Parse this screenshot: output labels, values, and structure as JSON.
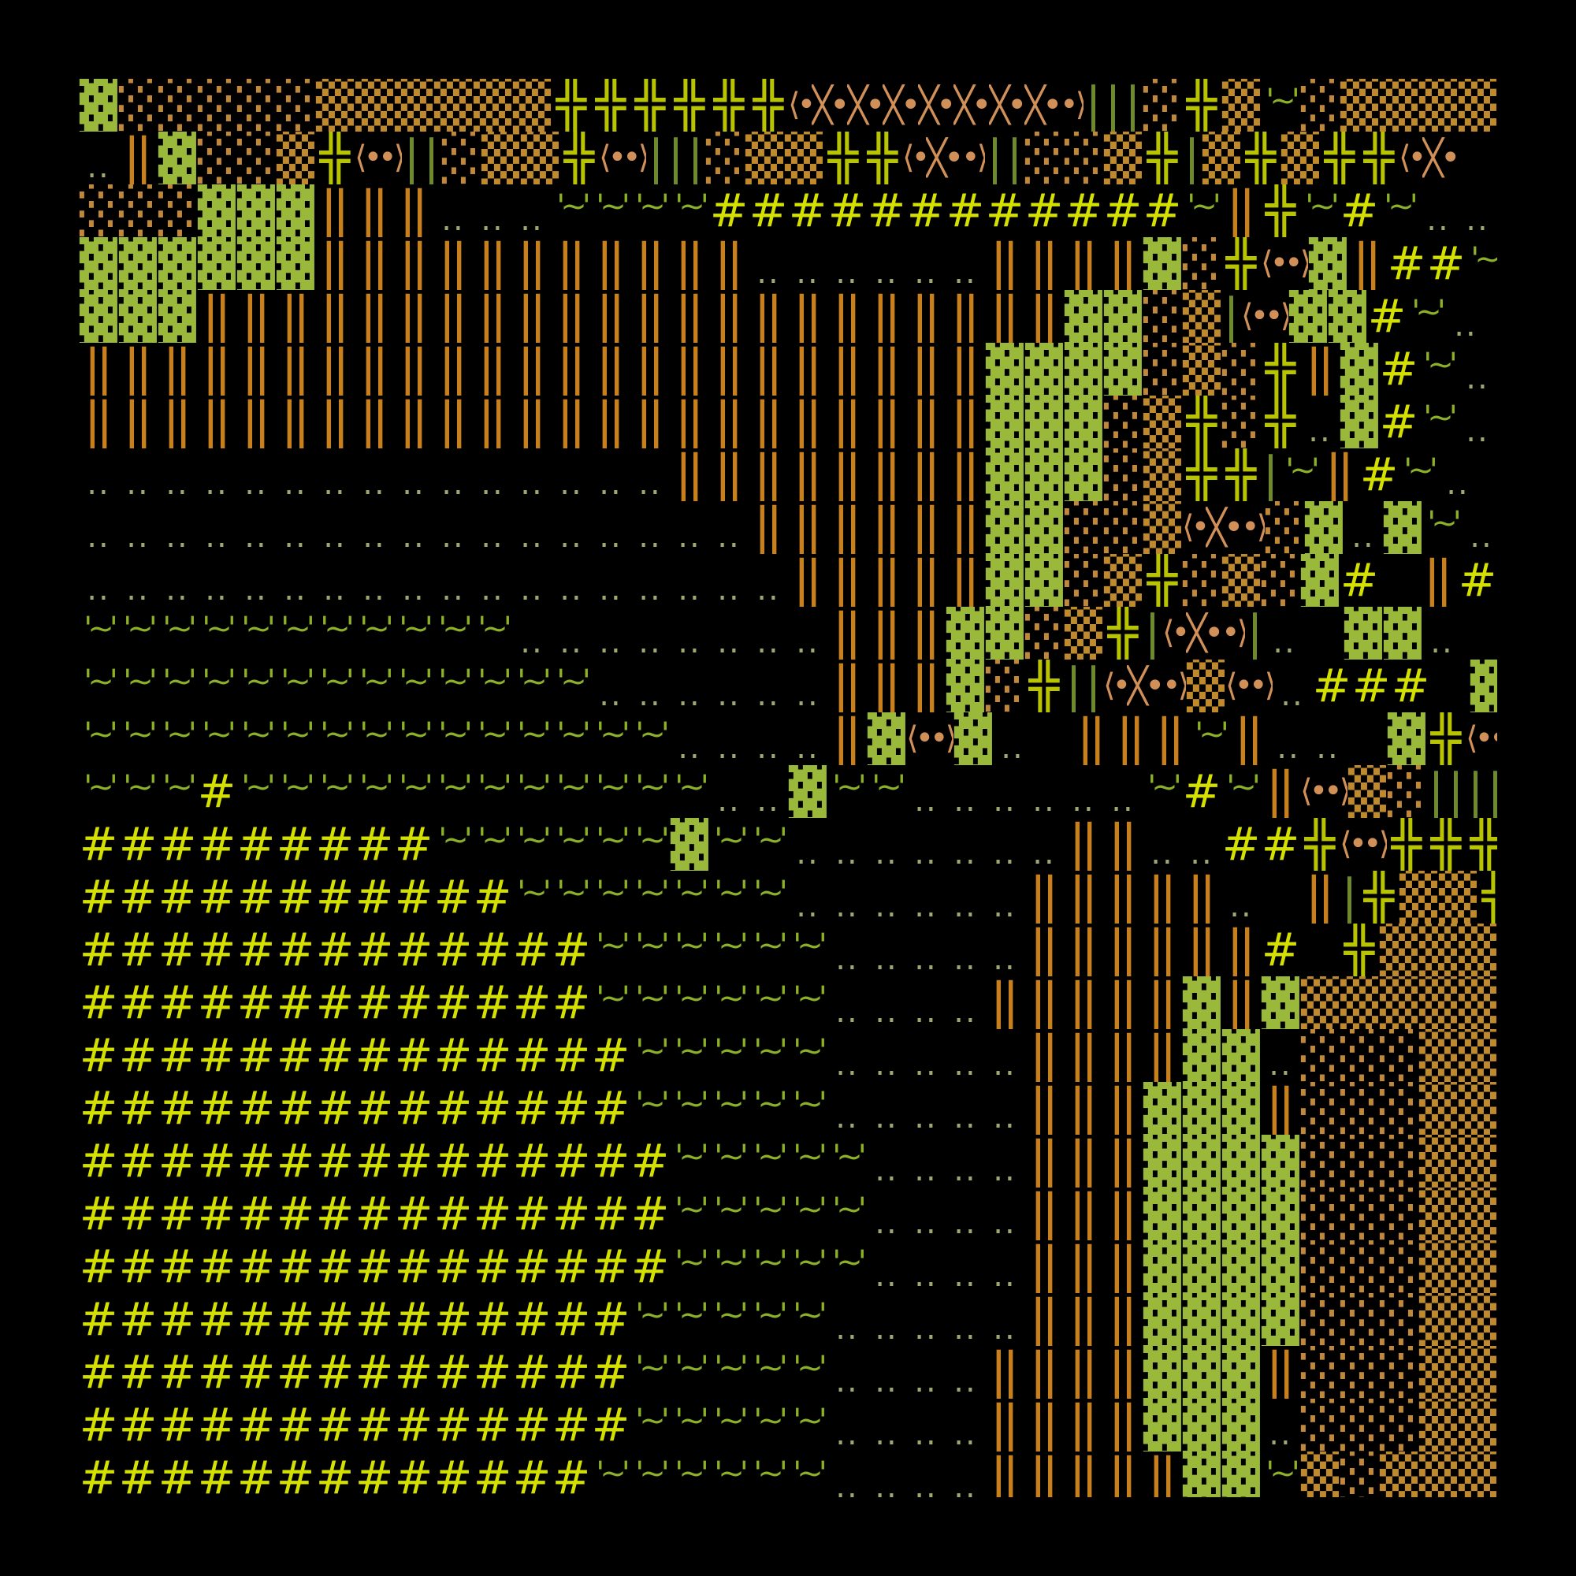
{
  "glyphs": {
    "G": {
      "char": "▓",
      "name": "dark-shade-block",
      "color": "#9ab83a"
    },
    "L": {
      "char": "░",
      "name": "light-shade-block",
      "color": "#c08838"
    },
    "M": {
      "char": "▒",
      "name": "medium-shade-block",
      "color": "#c08a2c"
    },
    "P": {
      "char": "╬",
      "name": "double-cross",
      "color": "#b8c400"
    },
    "O": {
      "char": "‖",
      "name": "double-bar",
      "color": "#c8801c"
    },
    "H": {
      "char": "#",
      "name": "hash",
      "color": "#d4e000"
    },
    "T": {
      "char": "'~'",
      "name": "tilde-quote",
      "color": "#8cb028"
    },
    "D": {
      "char": "..",
      "name": "dots",
      "color": "#a0a870"
    },
    "A": {
      "char": "⟨•",
      "name": "left-angle-dot",
      "color": "#d09058"
    },
    "X": {
      "char": "╳•",
      "name": "cross-dot",
      "color": "#d09058"
    },
    "B": {
      "char": "•⟩",
      "name": "right-angle-dot",
      "color": "#d09058"
    },
    "V": {
      "char": "|",
      "name": "olive-bar",
      "color": "#6e8a2c"
    },
    "_": {
      "char": "",
      "name": "empty",
      "color": "#000000"
    }
  },
  "rows": [
    "GLLLLLMMMMMMPPPPPPAXXXXXXXBVVVLPMTLMMMMM",
    "DOGLLMPABVVLMMPABVVVLMMPPAXBVVLLMPVMPMPPAX",
    "LLLGGGOOODDDTTTTHHHHHHHHHHHHTOPTHTDD",
    "GGGGGGOOOOOOOOOOODDDDDDOOOOGLPABGOHHT",
    "GGGOOOOOOOOOOOOOOOOOOOOOOGGLMVABGGHTD",
    "OOOOOOOOOOOOOOOOOOOOOOOGGGGLMLPOGHTD",
    "OOOOOOOOOOOOOOOOOOOOOOOGGGLMPLPDGHTD",
    "DDDDDDDDDDDDDDDOOOOOOOOGGGLMPPVTOHTD",
    "DDDDDDDDDDDDDDDDDOOOOOOGGLLMAXBLGDGTD",
    "DDDDDDDDDDDDDDDDDDOOOOOGGLMPLMLGH_OHT",
    "TTTTTTTTTTTDDDDDDDDOOOGGLMPVAXBVD_GGD_GT",
    "TTTTTTTTTTTTTDDDDDDOOOGLPVVAXBMABDHHH_GG",
    "TTTTTTTTTTTTTTTDDDDOGABGD_OOOTODD_GPABVPPV",
    "TTTHTTTTTTTTTTTTDDGTTDDDDDDTHTOABMLVVVV",
    "HHHHHHHHHTTTTTTGTTDDDDDDDOODDHHPABPPP",
    "HHHHHHHHHHHTTTTTTTDDDDDDOOOOOD_OVPMMP",
    "HHHHHHHHHHHHHTTTTTTDDDDDOOOOOOH_PMMMMM",
    "HHHHHHHHHHHHHTTTTTTDDDDOOOOOGOGMMMMMM",
    "HHHHHHHHHHHHHHTTTTTDDDDDOOOOGGDLLLMM",
    "HHHHHHHHHHHHHHTTTTTDDDDDOOOGGGOLLLMM",
    "HHHHHHHHHHHHHHHTTTTTDDDDOOOGGGGLLLMM",
    "HHHHHHHHHHHHHHHTTTTTDDDDOOOGGGGLLLMM",
    "HHHHHHHHHHHHHHHTTTTTDDDDOOOGGGGLLLMM",
    "HHHHHHHHHHHHHHTTTTTDDDDDOOOGGGGLLLMM",
    "HHHHHHHHHHHHHHTTTTTDDDDOOOOGGGOLLLMM",
    "HHHHHHHHHHHHHHTTTTTDDDDOOOOGGGDLLLMM",
    "HHHHHHHHHHHHHTTTTTTDDDDOOOOOGGTMLMMM"
  ]
}
